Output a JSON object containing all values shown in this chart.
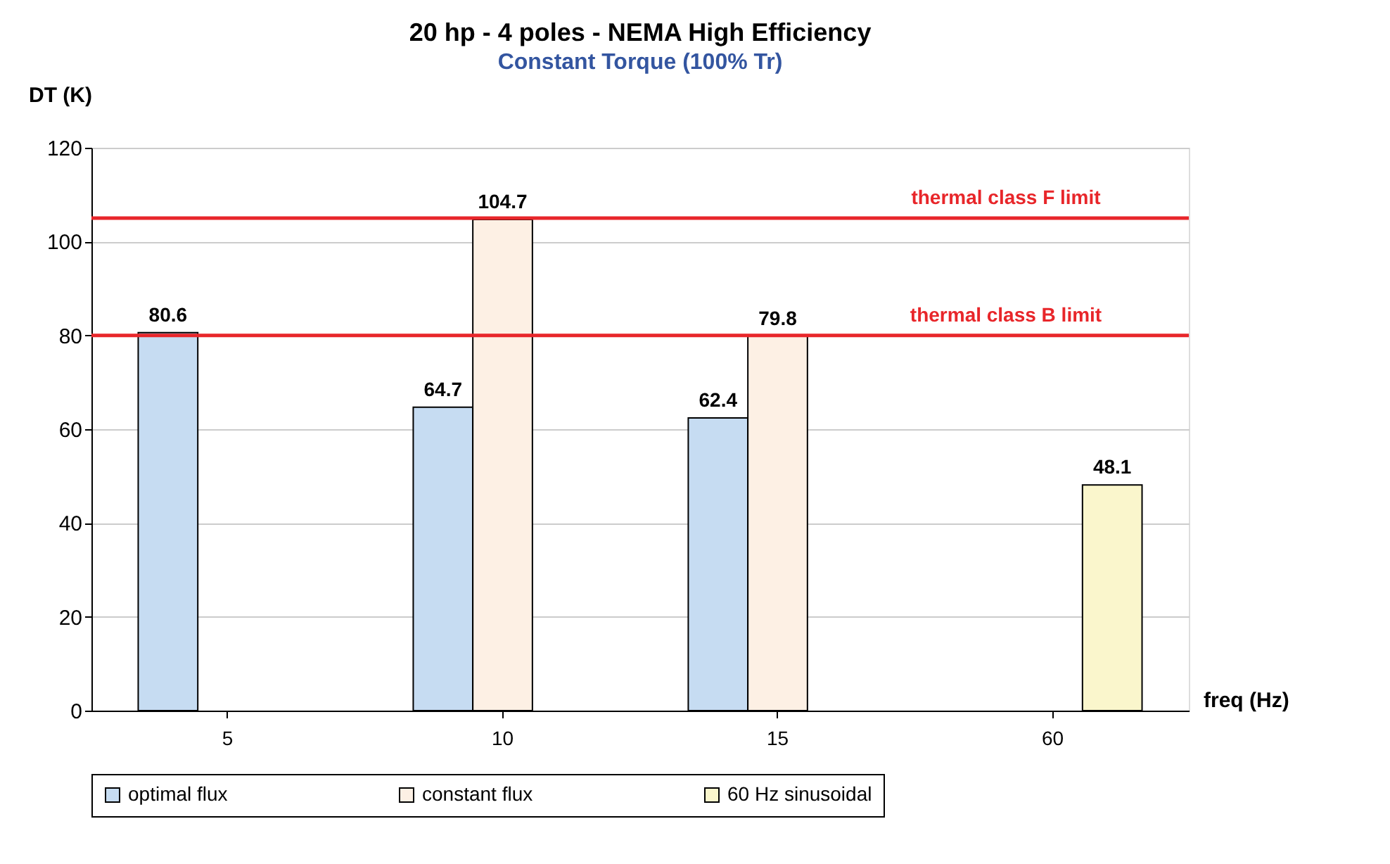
{
  "chart_data": {
    "type": "bar",
    "title": "20 hp - 4 poles - NEMA High Efficiency",
    "subtitle": "Constant Torque (100% Tr)",
    "xlabel": "freq (Hz)",
    "ylabel": "DT (K)",
    "categories": [
      "5",
      "10",
      "15",
      "60"
    ],
    "series": [
      {
        "name": "optimal flux",
        "color": "#c6dcf2",
        "values": [
          80.6,
          64.7,
          62.4,
          null
        ]
      },
      {
        "name": "constant flux",
        "color": "#fdf0e4",
        "values": [
          null,
          104.7,
          79.8,
          null
        ]
      },
      {
        "name": "60 Hz sinusoidal",
        "color": "#faf6cc",
        "values": [
          null,
          null,
          null,
          48.1
        ]
      }
    ],
    "ylim": [
      0,
      120
    ],
    "yticks": [
      0,
      20,
      40,
      60,
      80,
      100,
      120
    ],
    "grid": "y",
    "legend": "bottom",
    "data_labels": true,
    "ref_lines": [
      {
        "axis": "y",
        "value": 105,
        "label": "thermal class F limit",
        "color": "#e8262a"
      },
      {
        "axis": "y",
        "value": 80,
        "label": "thermal class B limit",
        "color": "#e8262a"
      }
    ]
  }
}
